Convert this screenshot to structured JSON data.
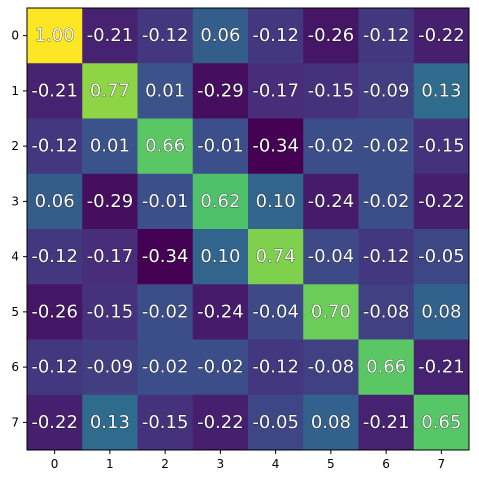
{
  "chart_data": {
    "type": "heatmap",
    "title": "",
    "xlabel": "",
    "ylabel": "",
    "x_categories": [
      "0",
      "1",
      "2",
      "3",
      "4",
      "5",
      "6",
      "7"
    ],
    "y_categories": [
      "0",
      "1",
      "2",
      "3",
      "4",
      "5",
      "6",
      "7"
    ],
    "values": [
      [
        1.0,
        -0.21,
        -0.12,
        0.06,
        -0.12,
        -0.26,
        -0.12,
        -0.22
      ],
      [
        -0.21,
        0.77,
        0.01,
        -0.29,
        -0.17,
        -0.15,
        -0.09,
        0.13
      ],
      [
        -0.12,
        0.01,
        0.66,
        -0.01,
        -0.34,
        -0.02,
        -0.02,
        -0.15
      ],
      [
        0.06,
        -0.29,
        -0.01,
        0.62,
        0.1,
        -0.24,
        -0.02,
        -0.22
      ],
      [
        -0.12,
        -0.17,
        -0.34,
        0.1,
        0.74,
        -0.04,
        -0.12,
        -0.05
      ],
      [
        -0.26,
        -0.15,
        -0.02,
        -0.24,
        -0.04,
        0.7,
        -0.08,
        0.08
      ],
      [
        -0.12,
        -0.09,
        -0.02,
        -0.02,
        -0.12,
        -0.08,
        0.66,
        -0.21
      ],
      [
        -0.22,
        0.13,
        -0.15,
        -0.22,
        -0.05,
        0.08,
        -0.21,
        0.65
      ]
    ],
    "labels": [
      [
        "1.00",
        "-0.21",
        "-0.12",
        "0.06",
        "-0.12",
        "-0.26",
        "-0.12",
        "-0.22"
      ],
      [
        "-0.21",
        "0.77",
        "0.01",
        "-0.29",
        "-0.17",
        "-0.15",
        "-0.09",
        "0.13"
      ],
      [
        "-0.12",
        "0.01",
        "0.66",
        "-0.01",
        "-0.34",
        "-0.02",
        "-0.02",
        "-0.15"
      ],
      [
        "0.06",
        "-0.29",
        "-0.01",
        "0.62",
        "0.10",
        "-0.24",
        "-0.02",
        "-0.22"
      ],
      [
        "-0.12",
        "-0.17",
        "-0.34",
        "0.10",
        "0.74",
        "-0.04",
        "-0.12",
        "-0.05"
      ],
      [
        "-0.26",
        "-0.15",
        "-0.02",
        "-0.24",
        "-0.04",
        "0.70",
        "-0.08",
        "0.08"
      ],
      [
        "-0.12",
        "-0.09",
        "-0.02",
        "-0.02",
        "-0.12",
        "-0.08",
        "0.66",
        "-0.21"
      ],
      [
        "-0.22",
        "0.13",
        "-0.15",
        "-0.22",
        "-0.05",
        "0.08",
        "-0.21",
        "0.65"
      ]
    ],
    "colormap": "viridis",
    "value_range": [
      -0.34,
      1.0
    ],
    "grid": false,
    "legend": "none"
  }
}
